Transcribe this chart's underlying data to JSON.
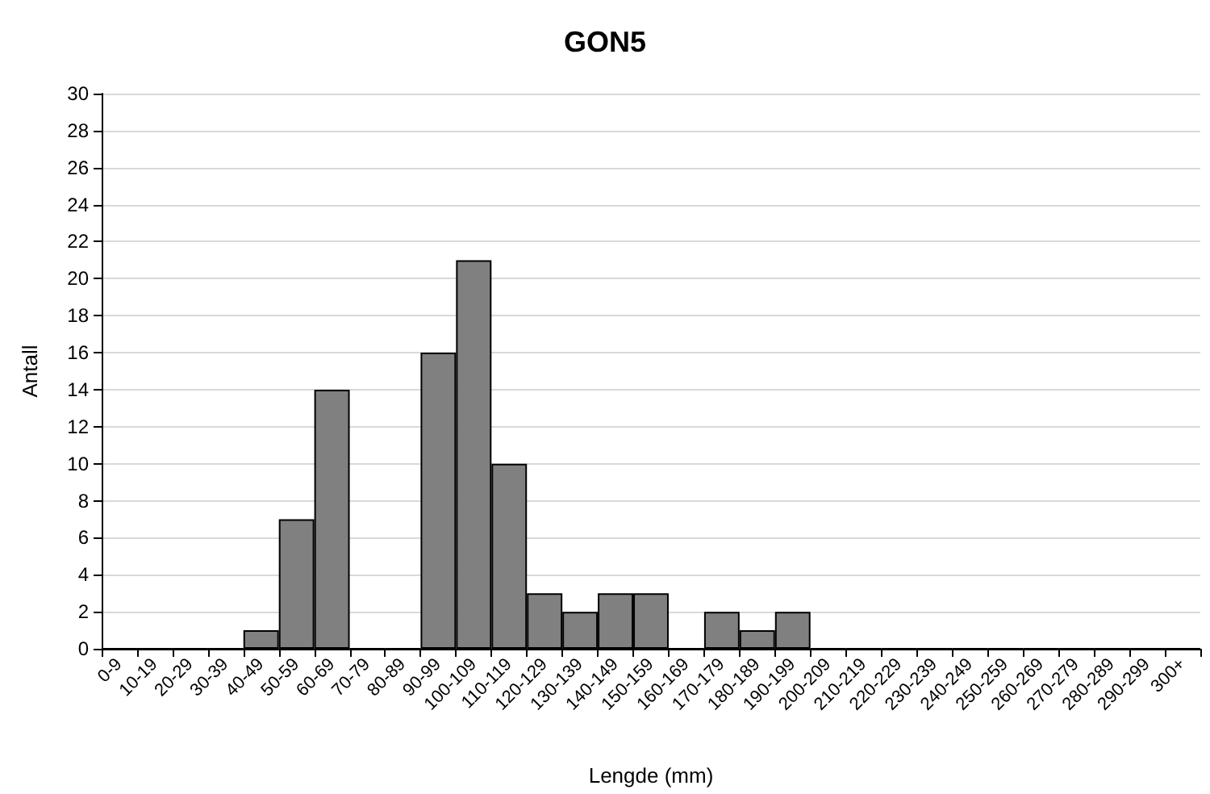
{
  "chart_data": {
    "type": "bar",
    "title": "GON5",
    "xlabel": "Lengde (mm)",
    "ylabel": "Antall",
    "categories": [
      "0-9",
      "10-19",
      "20-29",
      "30-39",
      "40-49",
      "50-59",
      "60-69",
      "70-79",
      "80-89",
      "90-99",
      "100-109",
      "110-119",
      "120-129",
      "130-139",
      "140-149",
      "150-159",
      "160-169",
      "170-179",
      "180-189",
      "190-199",
      "200-209",
      "210-219",
      "220-229",
      "230-239",
      "240-249",
      "250-259",
      "260-269",
      "270-279",
      "280-289",
      "290-299",
      "300+"
    ],
    "values": [
      0,
      0,
      0,
      0,
      1,
      7,
      14,
      0,
      0,
      16,
      21,
      10,
      3,
      2,
      3,
      3,
      0,
      2,
      1,
      2,
      0,
      0,
      0,
      0,
      0,
      0,
      0,
      0,
      0,
      0,
      0
    ],
    "color": "#808080",
    "ylim": [
      0,
      30
    ],
    "yticks": [
      0,
      2,
      4,
      6,
      8,
      10,
      12,
      14,
      16,
      18,
      20,
      22,
      24,
      26,
      28,
      30
    ],
    "grid": "y"
  }
}
